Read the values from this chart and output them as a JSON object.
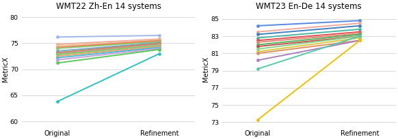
{
  "chart1": {
    "title": "WMT22 Zh-En 14 systems",
    "ylim": [
      59,
      81
    ],
    "yticks": [
      60,
      65,
      70,
      75,
      80
    ],
    "systems": [
      {
        "orig": 76.2,
        "ref": 76.5,
        "color": "#a0b8e8"
      },
      {
        "orig": 74.8,
        "ref": 75.8,
        "color": "#f0a898"
      },
      {
        "orig": 74.5,
        "ref": 75.6,
        "color": "#e8c898"
      },
      {
        "orig": 74.2,
        "ref": 75.5,
        "color": "#f07850"
      },
      {
        "orig": 74.0,
        "ref": 75.3,
        "color": "#90c878"
      },
      {
        "orig": 73.5,
        "ref": 75.1,
        "color": "#70a8d0"
      },
      {
        "orig": 73.2,
        "ref": 75.0,
        "color": "#c08860"
      },
      {
        "orig": 73.0,
        "ref": 74.8,
        "color": "#d09888"
      },
      {
        "orig": 72.8,
        "ref": 74.6,
        "color": "#80c870"
      },
      {
        "orig": 72.5,
        "ref": 74.4,
        "color": "#e0a870"
      },
      {
        "orig": 72.2,
        "ref": 74.2,
        "color": "#50b8d8"
      },
      {
        "orig": 71.8,
        "ref": 74.0,
        "color": "#c8a0d8"
      },
      {
        "orig": 71.2,
        "ref": 73.8,
        "color": "#58c858"
      },
      {
        "orig": 63.8,
        "ref": 73.0,
        "color": "#30c0c0"
      }
    ]
  },
  "chart2": {
    "title": "WMT23 En-De 14 systems",
    "ylim": [
      72.5,
      85.8
    ],
    "yticks": [
      73,
      75,
      77,
      79,
      81,
      83,
      85
    ],
    "systems": [
      {
        "orig": 84.2,
        "ref": 84.8,
        "color": "#5888e0"
      },
      {
        "orig": 83.5,
        "ref": 84.5,
        "color": "#f0a898"
      },
      {
        "orig": 83.2,
        "ref": 84.2,
        "color": "#4080c0"
      },
      {
        "orig": 82.8,
        "ref": 83.8,
        "color": "#48b8a0"
      },
      {
        "orig": 82.5,
        "ref": 83.5,
        "color": "#e05050"
      },
      {
        "orig": 82.3,
        "ref": 83.3,
        "color": "#e08878"
      },
      {
        "orig": 82.0,
        "ref": 83.2,
        "color": "#58b058"
      },
      {
        "orig": 81.8,
        "ref": 83.0,
        "color": "#c05050"
      },
      {
        "orig": 81.5,
        "ref": 83.0,
        "color": "#88d088"
      },
      {
        "orig": 81.2,
        "ref": 82.8,
        "color": "#d8c840"
      },
      {
        "orig": 81.0,
        "ref": 82.5,
        "color": "#e09060"
      },
      {
        "orig": 80.2,
        "ref": 82.5,
        "color": "#a880c0"
      },
      {
        "orig": 79.2,
        "ref": 83.0,
        "color": "#58c8a8"
      },
      {
        "orig": 73.3,
        "ref": 82.5,
        "color": "#f0c000"
      }
    ]
  },
  "ylabel": "MetricX",
  "xlabel_orig": "Original",
  "xlabel_ref": "Refinement",
  "bg_color": "#ffffff",
  "grid_color": "#d8d8d8",
  "marker_size": 3.5,
  "line_width": 1.4,
  "title_fontsize": 8.5,
  "axis_label_fontsize": 7.0,
  "tick_fontsize": 6.8
}
